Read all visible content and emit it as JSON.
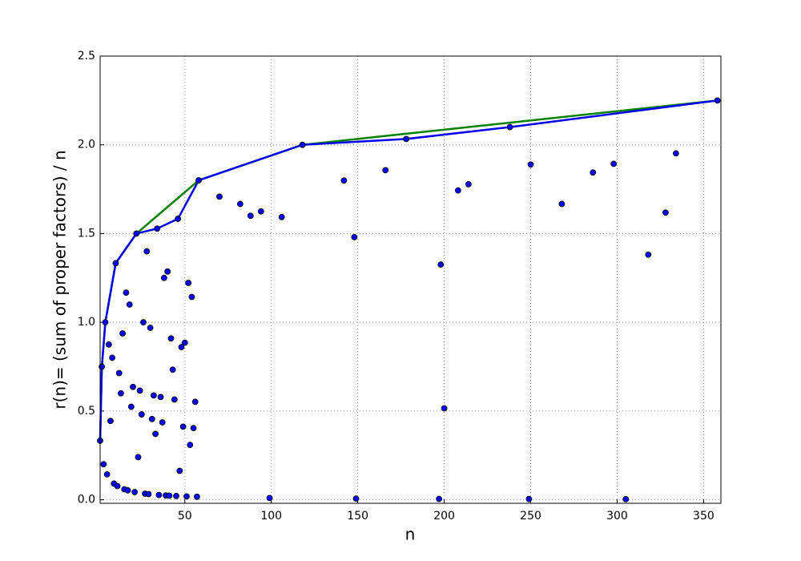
{
  "chart_data": {
    "type": "scatter",
    "xlabel": "n",
    "ylabel": "r(n)= (sum of proper factors) / n",
    "xlim": [
      1,
      360
    ],
    "ylim": [
      -0.02,
      2.5
    ],
    "xticks": [
      50,
      100,
      150,
      200,
      250,
      300,
      350
    ],
    "yticks": [
      {
        "value": 0,
        "label": "0.0"
      },
      {
        "value": 0.5,
        "label": "0.5"
      },
      {
        "value": 1,
        "label": "1.0"
      },
      {
        "value": 1.5,
        "label": "1.5"
      },
      {
        "value": 2,
        "label": "2.0"
      },
      {
        "value": 2.5,
        "label": "2.5"
      }
    ],
    "grid": true,
    "points": {
      "color": "#0000ff",
      "x": [
        1,
        2,
        3,
        4,
        5,
        6,
        7,
        8,
        9,
        10,
        11,
        12,
        13,
        14,
        15,
        16,
        17,
        18,
        19,
        20,
        21,
        22,
        23,
        24,
        25,
        26,
        27,
        28,
        29,
        30,
        31,
        32,
        33,
        34,
        35,
        36,
        37,
        38,
        39,
        40,
        41,
        42,
        43,
        44,
        45,
        46,
        47,
        48,
        49,
        50,
        51,
        52,
        53,
        54,
        55,
        56,
        57,
        58,
        70,
        82,
        88,
        94,
        106,
        118,
        142,
        148,
        166,
        178,
        198,
        200,
        208,
        214,
        238,
        250,
        268,
        286,
        298,
        318,
        328,
        334,
        358,
        99,
        149,
        197,
        249,
        305
      ],
      "values": [
        0.333,
        0.75,
        0.2,
        1.0,
        0.143,
        0.875,
        0.444,
        0.8,
        0.091,
        1.333,
        0.077,
        0.714,
        0.6,
        0.9375,
        0.059,
        1.167,
        0.053,
        1.1,
        0.524,
        0.636,
        0.043,
        1.5,
        0.24,
        0.615,
        0.481,
        1.0,
        0.034,
        1.4,
        0.032,
        0.969,
        0.455,
        0.588,
        0.371,
        1.528,
        0.027,
        0.579,
        0.436,
        1.25,
        0.024,
        1.286,
        0.023,
        0.909,
        0.733,
        0.565,
        0.021,
        1.583,
        0.163,
        0.86,
        0.412,
        0.885,
        0.019,
        1.222,
        0.309,
        1.143,
        0.404,
        0.552,
        0.017,
        1.8,
        1.708,
        1.667,
        1.6,
        1.625,
        1.593,
        2.0,
        1.799,
        1.48,
        1.857,
        2.033,
        1.325,
        0.515,
        1.743,
        1.778,
        2.1,
        1.889,
        1.667,
        1.844,
        1.893,
        1.381,
        1.618,
        1.952,
        2.25,
        0.0099,
        0.0066,
        0.005,
        0.004,
        0.003
      ]
    },
    "series": [
      {
        "color": "#008000",
        "x": [
          1,
          2,
          4,
          10,
          22,
          58,
          118,
          358
        ],
        "values": [
          0.333,
          0.75,
          1.0,
          1.333,
          1.5,
          1.8,
          2.0,
          2.25
        ]
      },
      {
        "color": "#0000ee",
        "x": [
          1,
          2,
          4,
          10,
          22,
          34,
          46,
          58,
          118,
          178,
          238,
          358
        ],
        "values": [
          0.333,
          0.75,
          1.0,
          1.333,
          1.5,
          1.528,
          1.583,
          1.8,
          2.0,
          2.033,
          2.1,
          2.25
        ]
      }
    ]
  }
}
